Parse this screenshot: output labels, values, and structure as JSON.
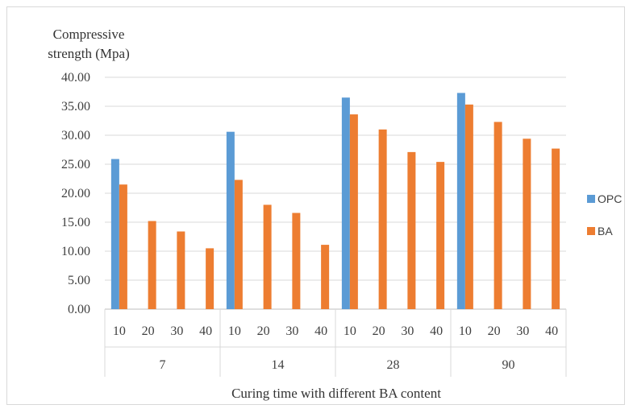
{
  "chart_data": {
    "type": "bar",
    "title": "",
    "ylabel_lines": [
      "Compressive",
      "strength (Mpa)"
    ],
    "xlabel": "Curing time with different BA content",
    "ylim": [
      0,
      40
    ],
    "yticks": [
      "0.00",
      "5.00",
      "10.00",
      "15.00",
      "20.00",
      "25.00",
      "30.00",
      "35.00",
      "40.00"
    ],
    "groups": [
      "7",
      "14",
      "28",
      "90"
    ],
    "subcategories": [
      "10",
      "20",
      "30",
      "40"
    ],
    "categories": [
      "7-10",
      "7-20",
      "7-30",
      "7-40",
      "14-10",
      "14-20",
      "14-30",
      "14-40",
      "28-10",
      "28-20",
      "28-30",
      "28-40",
      "90-10",
      "90-20",
      "90-30",
      "90-40"
    ],
    "series": [
      {
        "name": "OPC",
        "color": "#5b9bd5",
        "values": [
          25.9,
          null,
          null,
          null,
          30.6,
          null,
          null,
          null,
          36.5,
          null,
          null,
          null,
          37.3,
          null,
          null,
          null
        ]
      },
      {
        "name": "BA",
        "color": "#ed7d31",
        "values": [
          21.5,
          15.2,
          13.4,
          10.5,
          22.3,
          18.0,
          16.6,
          11.1,
          33.6,
          31.0,
          27.1,
          25.4,
          35.3,
          32.3,
          29.4,
          27.7
        ]
      }
    ],
    "grid": true,
    "legend_position": "right"
  }
}
